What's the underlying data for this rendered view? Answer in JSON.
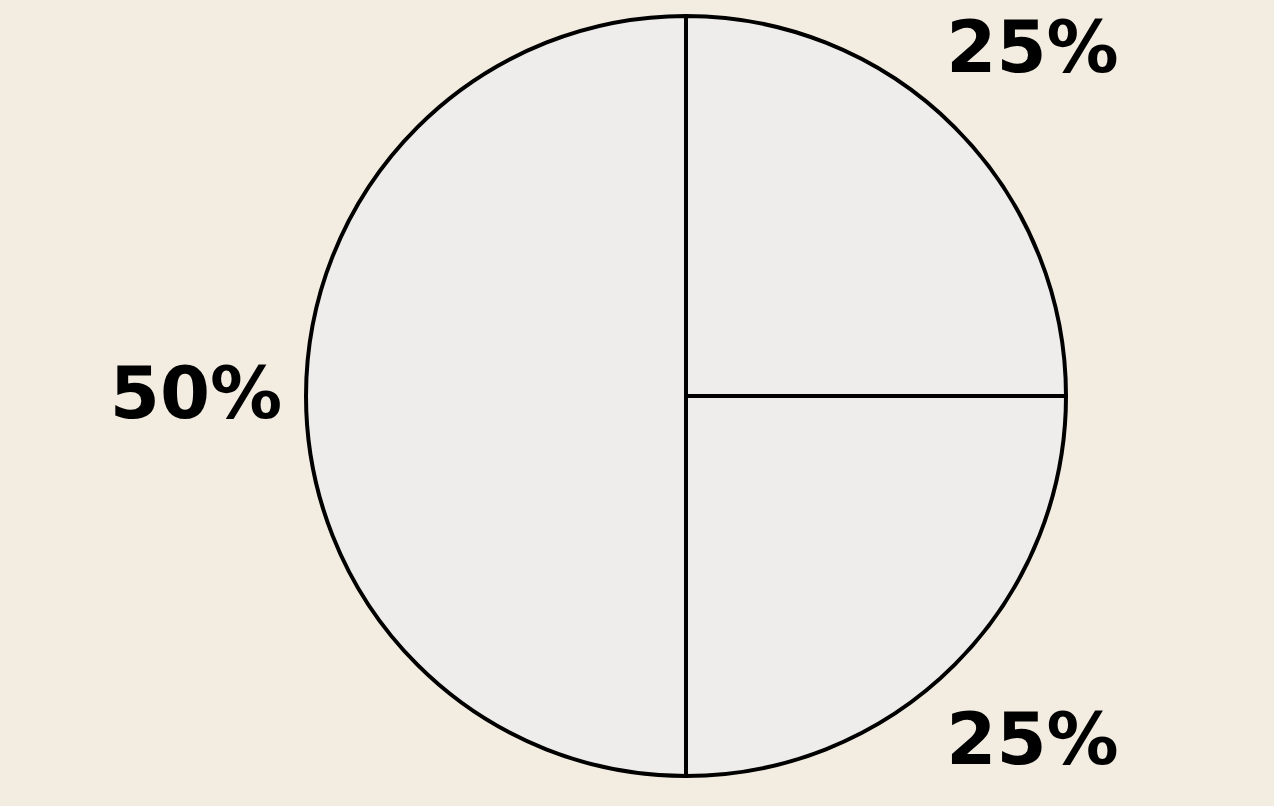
{
  "chart_data": {
    "type": "pie",
    "categories": [
      null,
      null,
      null
    ],
    "values": [
      25,
      25,
      50
    ],
    "colors": [
      "#eeedeb",
      "#eeedeb",
      "#eeedeb"
    ],
    "value_labels": [
      "25%",
      "25%",
      "50%"
    ],
    "legend": false
  }
}
